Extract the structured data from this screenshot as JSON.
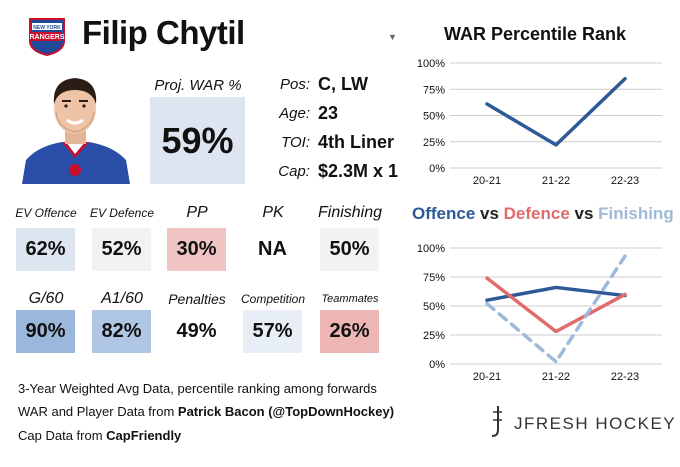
{
  "player": {
    "name": "Filip Chytil",
    "team_logo_text": "NEW YORK RANGERS"
  },
  "proj_war": {
    "label": "Proj. WAR %",
    "value": "59%"
  },
  "info": [
    {
      "label": "Pos:",
      "value": "C, LW"
    },
    {
      "label": "Age:",
      "value": "23"
    },
    {
      "label": "TOI:",
      "value": "4th Liner"
    },
    {
      "label": "Cap:",
      "value": "$2.3M x 1"
    }
  ],
  "stats": [
    {
      "label": "EV Offence",
      "value": "62%",
      "color": "#dde6f0"
    },
    {
      "label": "EV Defence",
      "value": "52%",
      "color": "#f2f2f2"
    },
    {
      "label": "PP",
      "value": "30%",
      "color": "#f1c4c4"
    },
    {
      "label": "PK",
      "value": "NA",
      "color": "#ffffff"
    },
    {
      "label": "Finishing",
      "value": "50%",
      "color": "#f2f2f2"
    },
    {
      "label": "G/60",
      "value": "90%",
      "color": "#9ab8dc"
    },
    {
      "label": "A1/60",
      "value": "82%",
      "color": "#afc7e4"
    },
    {
      "label": "Penalties",
      "value": "49%",
      "color": "#ffffff"
    },
    {
      "label": "Competition",
      "value": "57%",
      "color": "#e8eef5"
    },
    {
      "label": "Teammates",
      "value": "26%",
      "color": "#eeb5b5"
    }
  ],
  "footer": {
    "line1": "3-Year Weighted Avg Data, percentile ranking among forwards",
    "line2_prefix": "WAR and Player Data from ",
    "line2_bold": "Patrick Bacon (@TopDownHockey)",
    "line3_prefix": "Cap Data from ",
    "line3_bold": "CapFriendly",
    "brand": "JFRESH HOCKEY"
  },
  "colors": {
    "offence": "#2d5a96",
    "defence": "#e06b6b",
    "finishing": "#9fbad9",
    "grid": "#cccccc"
  },
  "chart_data": [
    {
      "type": "line",
      "title": "WAR Percentile Rank",
      "categories": [
        "20-21",
        "21-22",
        "22-23"
      ],
      "series": [
        {
          "values": [
            61,
            22,
            85
          ],
          "color": "#2d5a96"
        }
      ],
      "ylim": [
        0,
        100
      ],
      "yticks": [
        "0%",
        "25%",
        "50%",
        "75%",
        "100%"
      ],
      "grid": true
    },
    {
      "type": "line",
      "title_parts": [
        {
          "text": "Offence",
          "role": "offence"
        },
        {
          "text": " vs ",
          "role": "vs"
        },
        {
          "text": "Defence",
          "role": "defence"
        },
        {
          "text": " vs ",
          "role": "vs"
        },
        {
          "text": "Finishing",
          "role": "finishing"
        }
      ],
      "categories": [
        "20-21",
        "21-22",
        "22-23"
      ],
      "series": [
        {
          "name": "Offence",
          "values": [
            55,
            66,
            59
          ],
          "color": "#2d5a96",
          "dashed": false
        },
        {
          "name": "Defence",
          "values": [
            74,
            28,
            60
          ],
          "color": "#e06b6b",
          "dashed": false
        },
        {
          "name": "Finishing",
          "values": [
            52,
            2,
            93
          ],
          "color": "#9fbad9",
          "dashed": true
        }
      ],
      "ylim": [
        0,
        100
      ],
      "yticks": [
        "0%",
        "25%",
        "50%",
        "75%",
        "100%"
      ],
      "grid": true
    }
  ]
}
